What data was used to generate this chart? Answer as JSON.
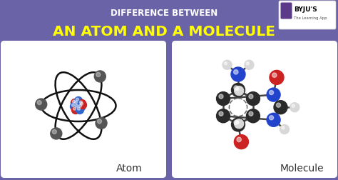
{
  "bg_color": "#6b63a8",
  "title_line1": "DIFFERENCE BETWEEN",
  "title_line2": "AN ATOM AND A MOLECULE",
  "title_line1_color": "#ffffff",
  "title_line2_color": "#ffff00",
  "panel_color": "#ffffff",
  "atom_label": "Atom",
  "molecule_label": "Molecule",
  "nucleus_red": "#cc2222",
  "nucleus_blue": "#3366cc",
  "electron_color": "#555555",
  "orbit_color": "#111111",
  "mol_carbon_color": "#2a2a2a",
  "mol_nitrogen_color": "#2244cc",
  "mol_oxygen_color": "#cc2222",
  "mol_hydrogen_color": "#d8d8d8",
  "bond_color": "#444444"
}
